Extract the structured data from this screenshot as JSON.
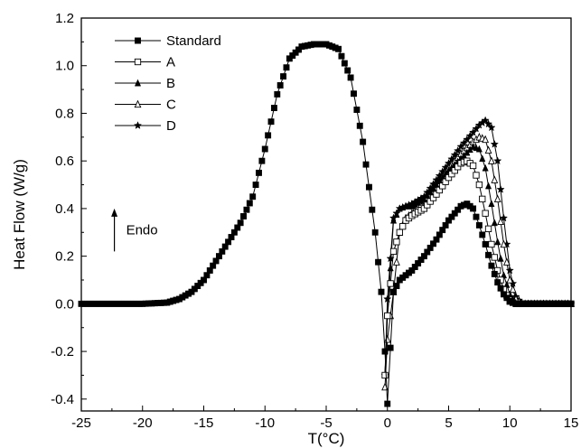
{
  "chart_data": {
    "type": "line",
    "title": "",
    "xlabel": "T(°C)",
    "ylabel": "Heat Flow (W/g)",
    "xlim": [
      -25,
      15
    ],
    "ylim": [
      -0.45,
      1.2
    ],
    "x_ticks": [
      -25,
      -20,
      -15,
      -10,
      -5,
      0,
      5,
      10,
      15
    ],
    "x_tick_labels": [
      "-25",
      "-20",
      "-15",
      "-10",
      "-5",
      "0",
      "5",
      "10",
      "15"
    ],
    "y_ticks": [
      -0.4,
      -0.2,
      0.0,
      0.2,
      0.4,
      0.6,
      0.8,
      1.0,
      1.2
    ],
    "y_tick_labels": [
      "-0.4",
      "-0.2",
      "0.0",
      "0.2",
      "0.4",
      "0.6",
      "0.8",
      "1.0",
      "1.2"
    ],
    "grid": false,
    "legend_position": "top-left",
    "annotation": {
      "text": "Endo",
      "arrow_from": [
        -22.3,
        0.22
      ],
      "arrow_to": [
        -22.3,
        0.4
      ]
    },
    "series": [
      {
        "name": "Standard",
        "marker": "filled-square",
        "x": [
          -25,
          -20,
          -18,
          -17,
          -16,
          -15,
          -14,
          -13,
          -12.5,
          -12,
          -11,
          -10,
          -9,
          -8,
          -7,
          -6,
          -5,
          -4,
          -3,
          -2,
          -1,
          -0.5,
          -0.2,
          0,
          0.5,
          1,
          2,
          3,
          4,
          5,
          6,
          6.5,
          7,
          7.5,
          8,
          8.5,
          9,
          9.5,
          10,
          10.5,
          11,
          12,
          15
        ],
        "y": [
          0,
          0,
          0.005,
          0.02,
          0.05,
          0.1,
          0.18,
          0.26,
          0.3,
          0.34,
          0.45,
          0.65,
          0.88,
          1.03,
          1.08,
          1.09,
          1.09,
          1.07,
          0.95,
          0.68,
          0.3,
          0.05,
          -0.2,
          -0.42,
          0.05,
          0.1,
          0.14,
          0.2,
          0.27,
          0.35,
          0.41,
          0.42,
          0.4,
          0.33,
          0.25,
          0.16,
          0.09,
          0.04,
          0.01,
          0,
          0,
          0,
          0
        ]
      },
      {
        "name": "A",
        "marker": "open-square",
        "x": [
          -0.2,
          0,
          0.5,
          1,
          1.5,
          2,
          3,
          4,
          5,
          6,
          6.5,
          7,
          7.5,
          8,
          8.5,
          9,
          9.5,
          10,
          10.5,
          12,
          15
        ],
        "y": [
          -0.3,
          -0.05,
          0.22,
          0.3,
          0.35,
          0.37,
          0.4,
          0.46,
          0.53,
          0.59,
          0.6,
          0.58,
          0.5,
          0.38,
          0.25,
          0.14,
          0.06,
          0.01,
          0,
          0,
          0
        ]
      },
      {
        "name": "B",
        "marker": "filled-triangle",
        "x": [
          -0.2,
          0,
          0.5,
          1,
          1.5,
          2,
          3,
          4,
          5,
          6,
          7,
          7.5,
          8,
          8.5,
          9,
          9.5,
          10,
          10.5,
          12,
          15
        ],
        "y": [
          -0.3,
          -0.05,
          0.35,
          0.4,
          0.41,
          0.41,
          0.44,
          0.5,
          0.56,
          0.61,
          0.66,
          0.65,
          0.57,
          0.42,
          0.26,
          0.12,
          0.04,
          0,
          0,
          0
        ]
      },
      {
        "name": "C",
        "marker": "open-triangle",
        "x": [
          -0.2,
          0,
          0.5,
          1,
          1.5,
          2,
          3,
          4,
          5,
          6,
          7,
          7.5,
          8,
          8.5,
          9,
          9.5,
          10,
          10.5,
          11,
          12,
          15
        ],
        "y": [
          -0.35,
          -0.15,
          0.05,
          0.3,
          0.36,
          0.38,
          0.43,
          0.5,
          0.57,
          0.63,
          0.68,
          0.7,
          0.69,
          0.6,
          0.44,
          0.25,
          0.1,
          0.02,
          0,
          0,
          0
        ]
      },
      {
        "name": "D",
        "marker": "filled-star",
        "x": [
          -0.2,
          0,
          0.5,
          1,
          1.5,
          2,
          3,
          4,
          5,
          6,
          7,
          7.5,
          8,
          8.5,
          9,
          9.5,
          10,
          10.5,
          11,
          12,
          15
        ],
        "y": [
          -0.3,
          0.02,
          0.36,
          0.4,
          0.41,
          0.42,
          0.45,
          0.52,
          0.59,
          0.66,
          0.72,
          0.75,
          0.77,
          0.74,
          0.6,
          0.36,
          0.14,
          0.03,
          0,
          0,
          0
        ]
      }
    ]
  }
}
